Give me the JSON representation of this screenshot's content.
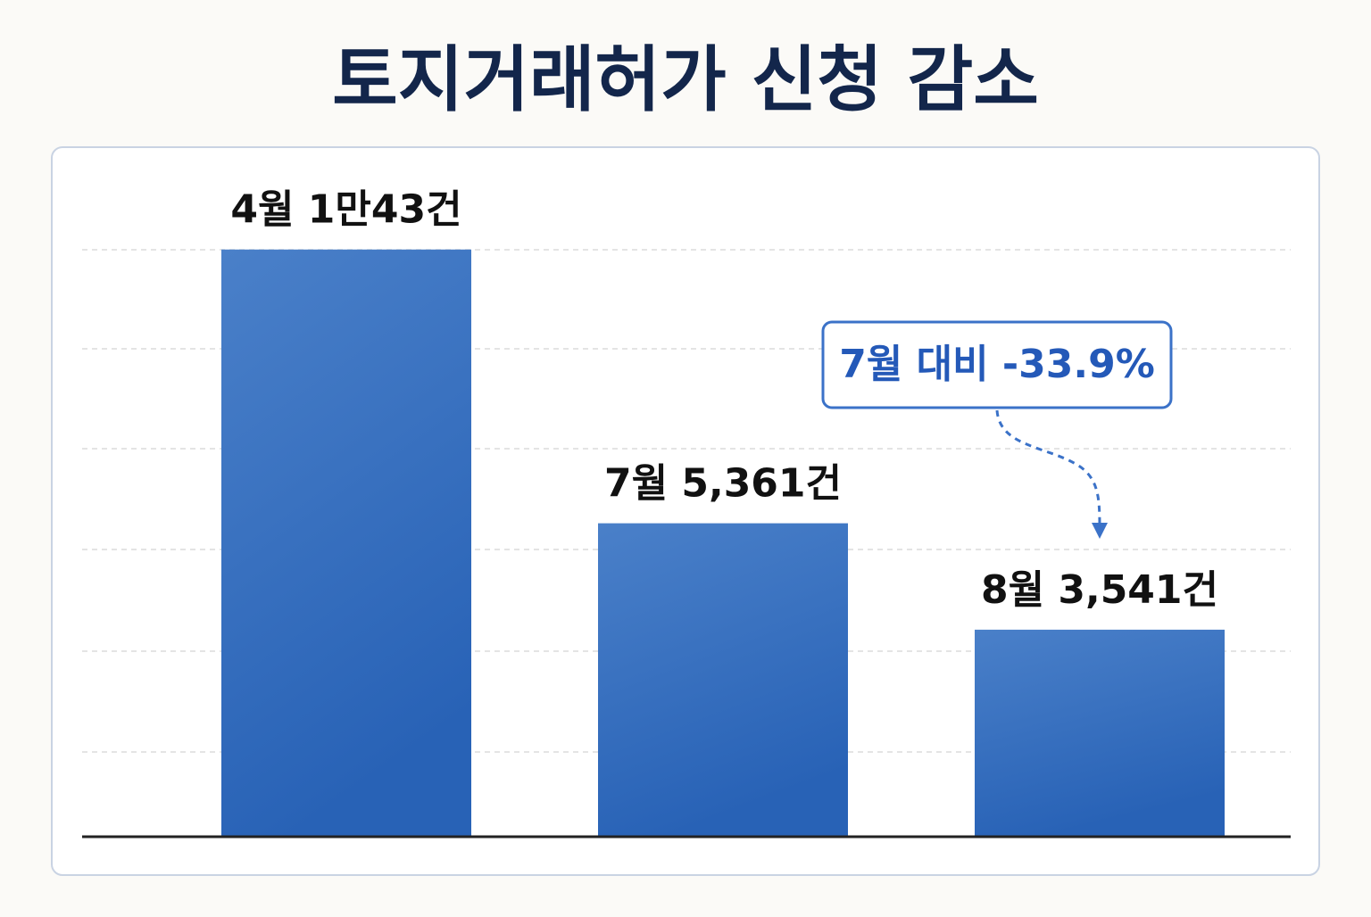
{
  "chart_data": {
    "type": "bar",
    "title": "토지거래허가 신청 감소",
    "values": [
      10043,
      5361,
      3541
    ],
    "value_labels": [
      "4월 1만43건",
      "7월 5,361건",
      "8월 3,541건"
    ],
    "color": "#3068c0",
    "ylim": [
      0,
      11000
    ],
    "annotation": "7월 대비 -33.9%"
  }
}
